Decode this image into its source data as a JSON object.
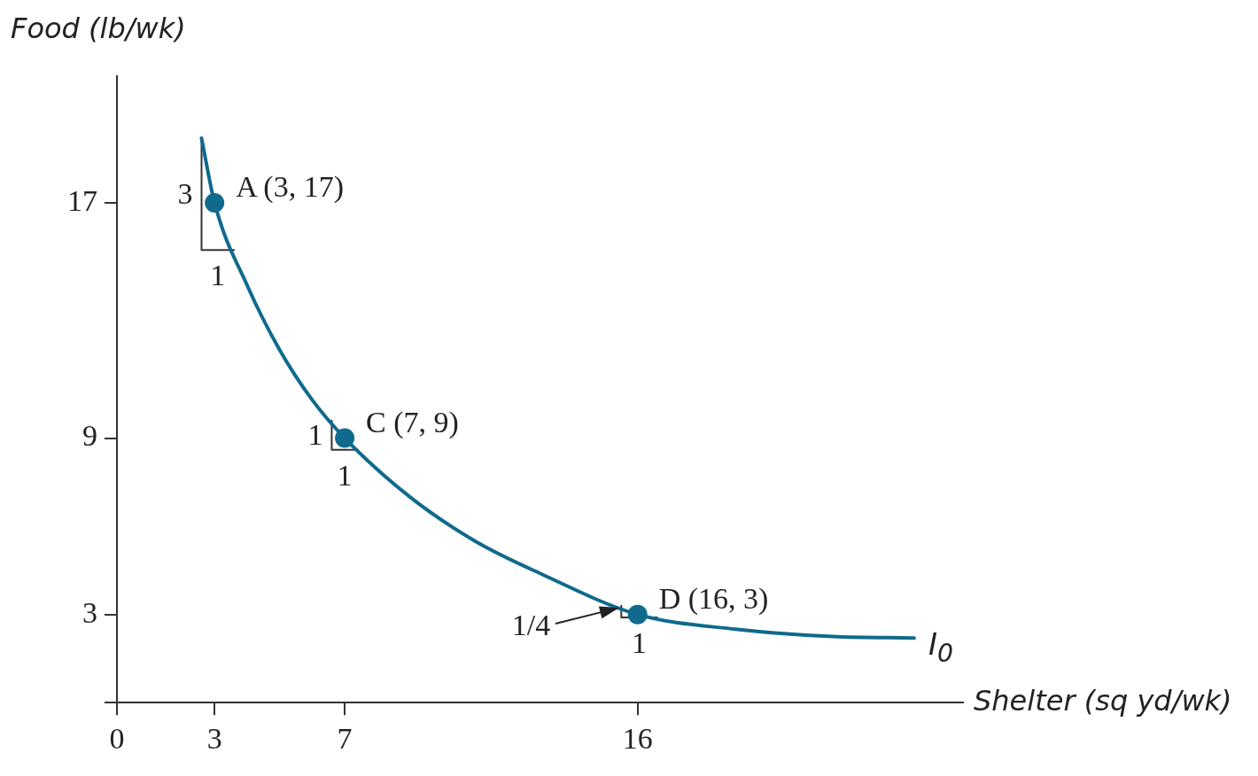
{
  "chart_data": {
    "type": "line",
    "xlabel": "Shelter (sq yd/wk)",
    "ylabel": "Food (lb/wk)",
    "xlim": [
      0,
      26
    ],
    "ylim": [
      0,
      21.3
    ],
    "xticks": [
      0,
      3,
      7,
      16
    ],
    "yticks": [
      {
        "value": 0,
        "label": null
      },
      3,
      9,
      17
    ],
    "grid": false,
    "legend": false,
    "series": [
      {
        "name": "I$_{0}$",
        "color": "#0f6a8c",
        "x": [
          2.6,
          3,
          4,
          5,
          6,
          7,
          9,
          11,
          13,
          16,
          19,
          22,
          24.5
        ],
        "values": [
          19.2,
          17,
          14.2,
          12,
          10.3,
          9,
          7,
          5.5,
          4.4,
          3,
          2.5,
          2.25,
          2.2
        ]
      },
      {
        "type": "scatter",
        "marker": "circle",
        "color": "#0f6a8c",
        "x": [
          3,
          7,
          16
        ],
        "values": [
          17,
          9,
          3
        ]
      },
      {
        "type": "line",
        "color": "#333333",
        "x": [
          2.6,
          2.6,
          3.6
        ],
        "values": [
          19.2,
          15.4,
          15.4
        ]
      },
      {
        "type": "line",
        "color": "#333333",
        "x": [
          6.6,
          6.6,
          7.4
        ],
        "values": [
          9.6,
          8.6,
          8.6
        ]
      },
      {
        "type": "line",
        "color": "#333333",
        "x": [
          15.5,
          15.5,
          16.6
        ],
        "values": [
          3.3,
          2.9,
          2.9
        ]
      }
    ],
    "annotations": [
      {
        "text": "A (3, 17)",
        "x": 3,
        "y": 17
      },
      {
        "text": "C (7, 9)",
        "x": 7,
        "y": 9
      },
      {
        "text": "D (16, 3)",
        "x": 16,
        "y": 3
      },
      {
        "text": "3",
        "x": 2.6,
        "y": 17.3
      },
      {
        "text": "1",
        "x": 3.1,
        "y": 15.4
      },
      {
        "text": "1",
        "x": 6.6,
        "y": 9.1
      },
      {
        "text": "1",
        "x": 7,
        "y": 8.6
      },
      {
        "text": "1/4",
        "x": 15.5,
        "y": 3.1
      },
      {
        "text": "1",
        "x": 16.05,
        "y": 2.9
      }
    ]
  }
}
